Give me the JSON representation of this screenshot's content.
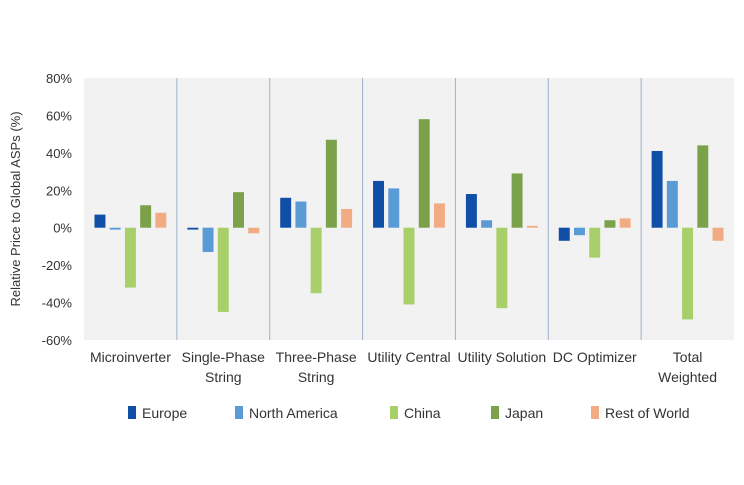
{
  "chart_data": {
    "type": "bar",
    "title": "",
    "xlabel": "",
    "ylabel": "Relative Price to Global ASPs (%)",
    "ylim": [
      -60,
      80
    ],
    "yticks": [
      80,
      60,
      40,
      20,
      0,
      -20,
      -40,
      -60
    ],
    "ytick_labels": [
      "80%",
      "60%",
      "40%",
      "20%",
      "0%",
      "-20%",
      "-40%",
      "-60%"
    ],
    "grid": false,
    "legend_position": "bottom",
    "categories": [
      [
        "Microinverter"
      ],
      [
        "Single-Phase",
        "String"
      ],
      [
        "Three-Phase",
        "String"
      ],
      [
        "Utility Central"
      ],
      [
        "Utility Solution"
      ],
      [
        "DC Optimizer"
      ],
      [
        "Total",
        "Weighted"
      ]
    ],
    "series": [
      {
        "name": "Europe",
        "color": "#0f4fa8",
        "values": [
          7,
          -1,
          16,
          25,
          18,
          -7,
          41
        ]
      },
      {
        "name": "North America",
        "color": "#5b9bd5",
        "values": [
          -1,
          -13,
          14,
          21,
          4,
          -4,
          25
        ]
      },
      {
        "name": "China",
        "color": "#a9cf6b",
        "values": [
          -32,
          -45,
          -35,
          -41,
          -43,
          -16,
          -49
        ]
      },
      {
        "name": "Japan",
        "color": "#7ba24b",
        "values": [
          12,
          19,
          47,
          58,
          29,
          4,
          44
        ]
      },
      {
        "name": "Rest of World",
        "color": "#f2ac83",
        "values": [
          8,
          -3,
          10,
          13,
          1,
          5,
          -7
        ]
      }
    ]
  }
}
